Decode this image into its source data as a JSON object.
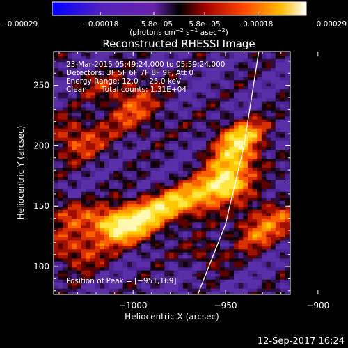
{
  "chart_data": {
    "type": "heatmap",
    "title": "Reconstructed RHESSI Image",
    "xlabel": "Heliocentric X (arcsec)",
    "ylabel": "Heliocentric Y (arcsec)",
    "xlim": [
      -1043,
      -915
    ],
    "ylim": [
      77,
      278
    ],
    "xticks": [
      -1000,
      -950,
      -900
    ],
    "xtick_labels": [
      "−1000",
      "−950",
      "−900"
    ],
    "yticks": [
      100,
      150,
      200,
      250
    ],
    "ytick_labels": [
      "100",
      "150",
      "200",
      "250"
    ],
    "colorbar": {
      "range": [
        -0.00029,
        0.00029
      ],
      "ticks": [
        -0.00029,
        -0.00018,
        -5.8e-05,
        5.8e-05,
        0.00018,
        0.00029
      ],
      "tick_labels": [
        "−0.00029",
        "−0.00018",
        "−5.8e−05",
        "5.8e−05",
        "0.00018",
        "0.00029"
      ],
      "unit_label": {
        "prefix": "(photons cm",
        "exp1": "−2",
        "mid1": " s",
        "exp2": "−1",
        "mid2": " asec",
        "exp3": "−2",
        "suffix": ")"
      }
    },
    "annotations": {
      "time_range": "23-Mar-2015 05:49:24.000 to 05:59:24.000",
      "detectors": "Detectors: 3F 5F 6F 7F 8F 9F, Att 0",
      "energy_range": "Energy Range: 12.0 − 25.0 keV",
      "method": "Clean",
      "total_counts": "Total counts: 1.31E+04",
      "peak_position": "Position of Peak = [−951,169]"
    },
    "peak": {
      "x": -951,
      "y": 169
    },
    "source_ridge": [
      [
        -1010,
        135
      ],
      [
        -985,
        148
      ],
      [
        -965,
        158
      ],
      [
        -955,
        166
      ],
      [
        -951,
        169
      ],
      [
        -948,
        178
      ],
      [
        -945,
        190
      ],
      [
        -943,
        205
      ]
    ],
    "limb_line": [
      [
        -965,
        77
      ],
      [
        -950,
        135
      ],
      [
        -940,
        200
      ],
      [
        -932,
        278
      ]
    ]
  },
  "footer": {
    "timestamp": "12-Sep-2017 16:24"
  },
  "colors": {
    "background": "#000000",
    "axes": "#ffffff",
    "colormap": [
      "#0000ff",
      "#4010c0",
      "#6020a0",
      "#200010",
      "#a01000",
      "#ff4000",
      "#ffb000",
      "#ffffff"
    ]
  }
}
